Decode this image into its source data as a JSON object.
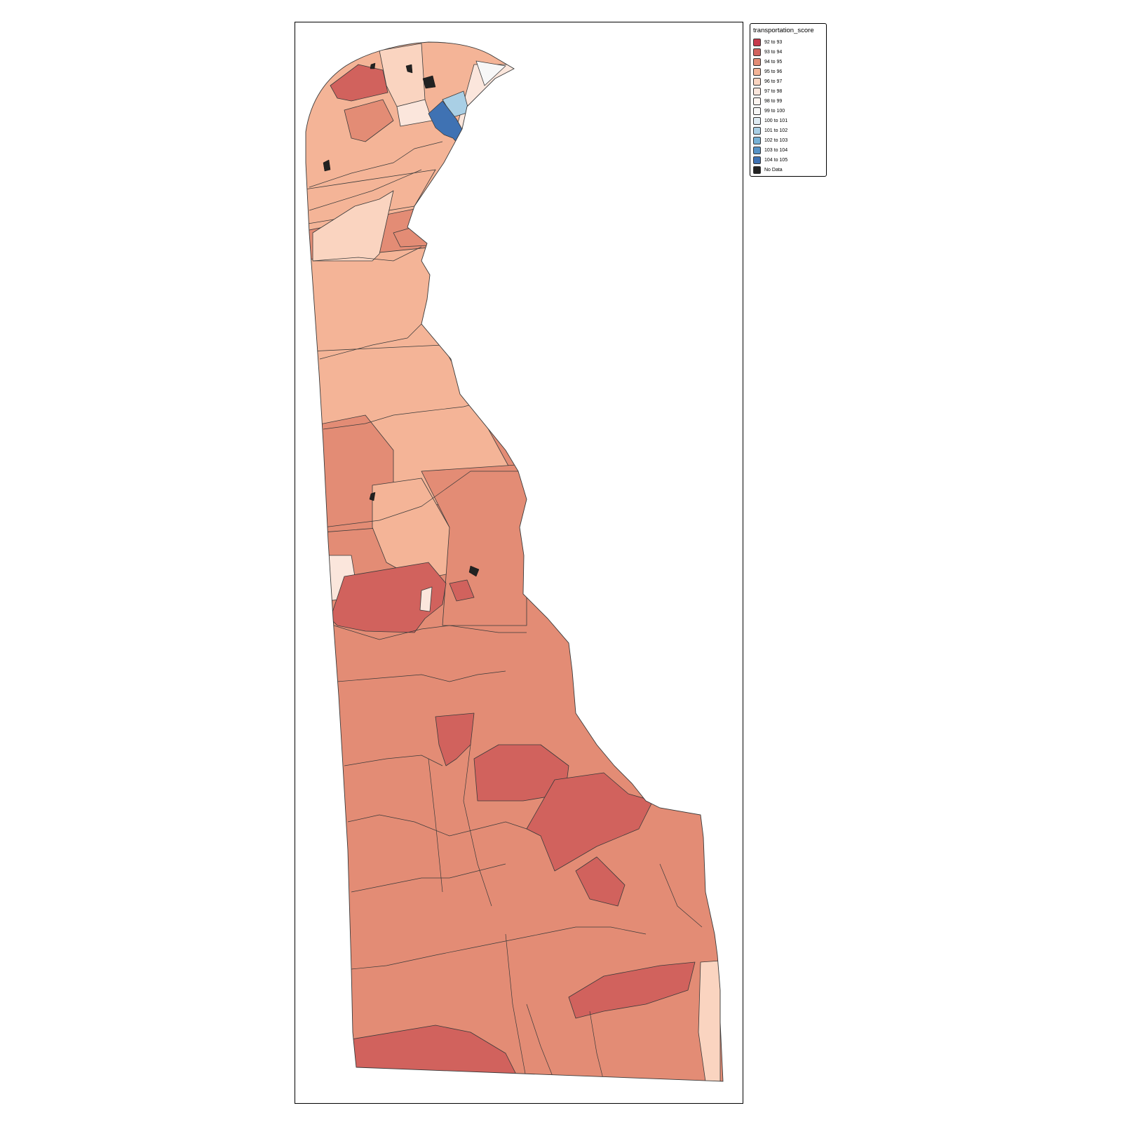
{
  "map": {
    "legend": {
      "title": "transportation_score",
      "items": [
        {
          "label": "92 to 93",
          "color": "#c7394b"
        },
        {
          "label": "93 to 94",
          "color": "#d1625d"
        },
        {
          "label": "94 to 95",
          "color": "#e38c75"
        },
        {
          "label": "95 to 96",
          "color": "#f4b497"
        },
        {
          "label": "96 to 97",
          "color": "#fad4c0"
        },
        {
          "label": "97 to 98",
          "color": "#fbe6dc"
        },
        {
          "label": "98 to 99",
          "color": "#fdf5f1"
        },
        {
          "label": "99 to 100",
          "color": "#f7f7f7"
        },
        {
          "label": "100 to 101",
          "color": "#deebf3"
        },
        {
          "label": "101 to 102",
          "color": "#a9cfe5"
        },
        {
          "label": "102 to 103",
          "color": "#78b2d6"
        },
        {
          "label": "103 to 104",
          "color": "#5793c6"
        },
        {
          "label": "104 to 105",
          "color": "#3f72b3"
        },
        {
          "label": "No Data",
          "color": "#222222"
        }
      ]
    }
  }
}
